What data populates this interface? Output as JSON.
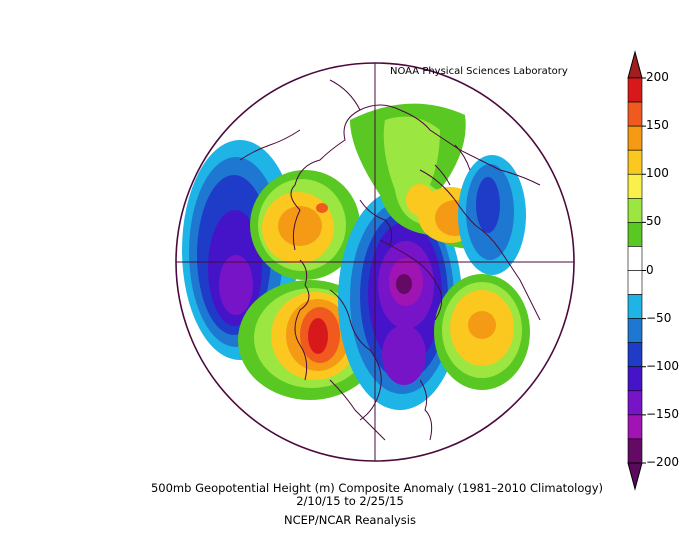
{
  "credit": "NOAA Physical Sciences Laboratory",
  "caption": {
    "line1": "500mb Geopotential Height (m) Composite Anomaly (1981–2010 Climatology)",
    "line2": "2/10/15   to 2/25/15",
    "line3": "NCEP/NCAR Reanalysis"
  },
  "colorbar": {
    "ticks": [
      "200",
      "150",
      "100",
      "50",
      "0",
      "−50",
      "−100",
      "−150",
      "−200"
    ],
    "colors": [
      "#d7191c",
      "#f05a1e",
      "#f59a14",
      "#fac81e",
      "#faf04b",
      "#9be641",
      "#5ac823",
      "#ffffff",
      "#ffffff",
      "#1eb4e6",
      "#1e78d2",
      "#1e3cc8",
      "#4614c8",
      "#7814c8",
      "#a014b4",
      "#640a64"
    ],
    "arrow_top_color": "#a01e1e",
    "arrow_bottom_color": "#5a0a5a"
  },
  "map": {
    "projection": "north polar stereographic",
    "outline_color": "#4b0a3c"
  }
}
